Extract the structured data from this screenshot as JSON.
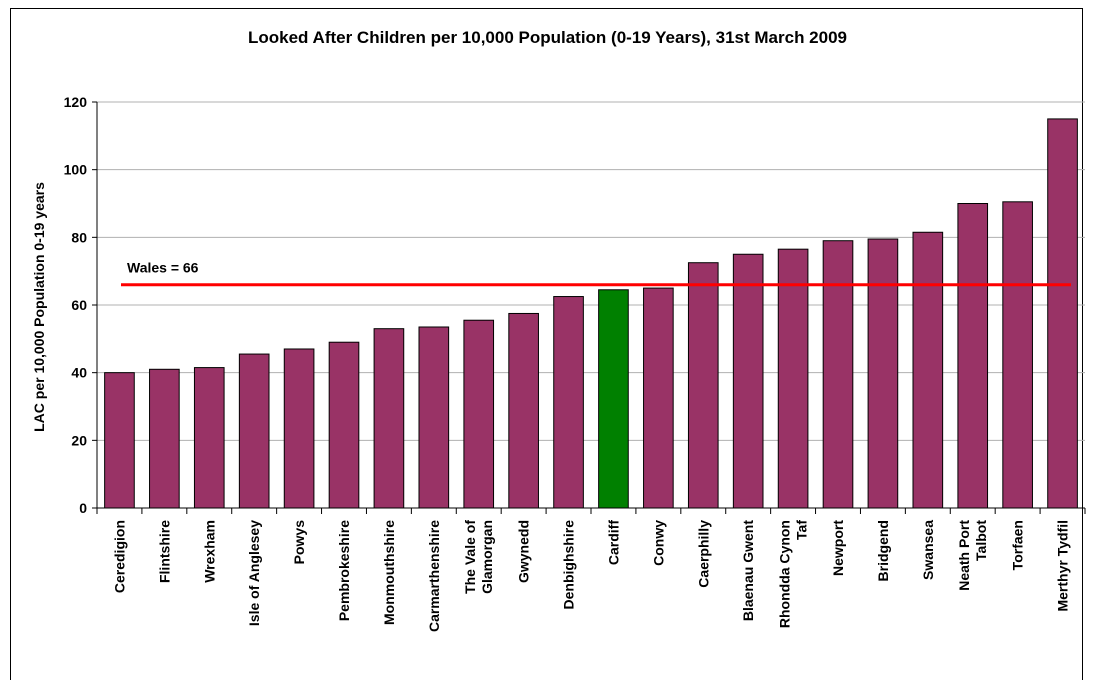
{
  "chart_data": {
    "type": "bar",
    "title": "Looked After Children per 10,000 Population (0-19 Years), 31st March 2009",
    "xlabel": "",
    "ylabel": "LAC per 10,000 Population 0-19 years",
    "ylim": [
      0,
      120
    ],
    "yticks": [
      0,
      20,
      40,
      60,
      80,
      100,
      120
    ],
    "grid": true,
    "categories": [
      [
        "Ceredigion"
      ],
      [
        "Flintshire"
      ],
      [
        "Wrexham"
      ],
      [
        "Isle of Anglesey"
      ],
      [
        "Powys"
      ],
      [
        "Pembrokeshire"
      ],
      [
        "Monmouthshire"
      ],
      [
        "Carmarthenshire"
      ],
      [
        "The Vale of",
        "Glamorgan"
      ],
      [
        "Gwynedd"
      ],
      [
        "Denbighshire"
      ],
      [
        "Cardiff"
      ],
      [
        "Conwy"
      ],
      [
        "Caerphilly"
      ],
      [
        "Blaenau Gwent"
      ],
      [
        "Rhondda Cynon",
        "Taf"
      ],
      [
        "Newport"
      ],
      [
        "Bridgend"
      ],
      [
        "Swansea"
      ],
      [
        "Neath Port",
        "Talbot"
      ],
      [
        "Torfaen"
      ],
      [
        "Merthyr Tydfil"
      ]
    ],
    "values": [
      40,
      41,
      41.5,
      45.5,
      47,
      49,
      53,
      53.5,
      55.5,
      57.5,
      62.5,
      64.5,
      65,
      72.5,
      75,
      76.5,
      79,
      79.5,
      81.5,
      90,
      90.5,
      115
    ],
    "highlight_index": 11,
    "reference_line": {
      "value": 66,
      "label": "Wales = 66",
      "color": "#ff0000"
    },
    "colors": {
      "bar": "#993366",
      "highlight": "#008000",
      "gridline": "#b0b0b0"
    }
  }
}
